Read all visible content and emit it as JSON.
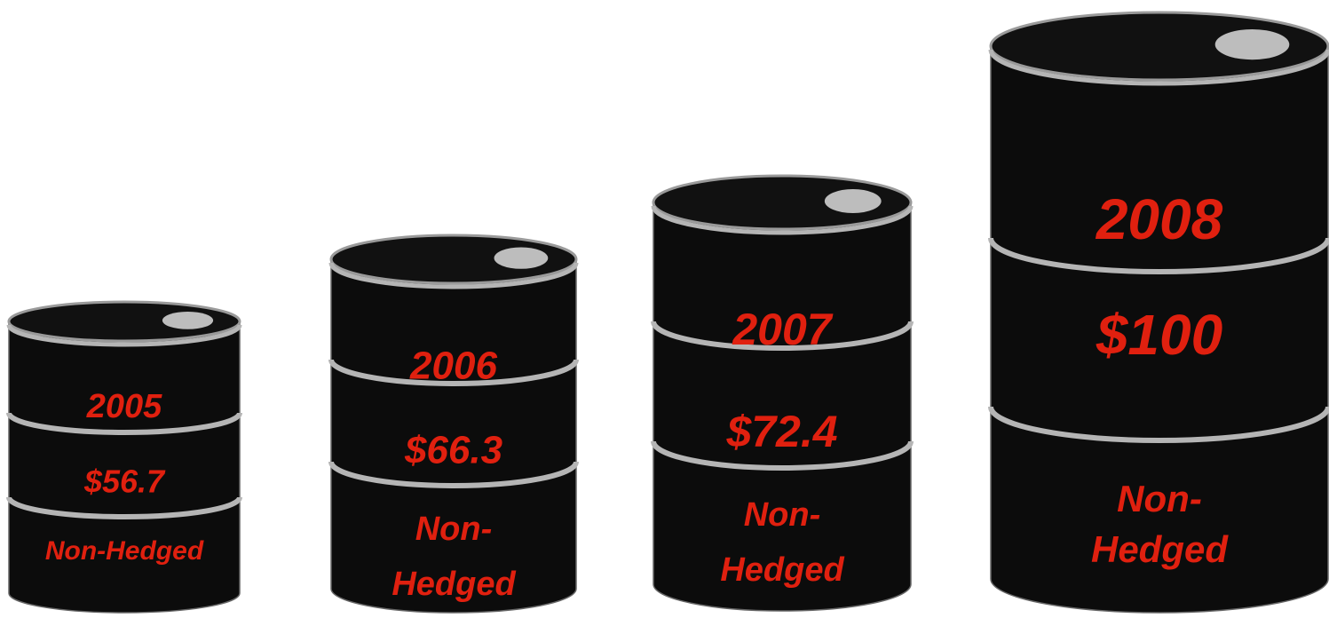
{
  "barrels": [
    {
      "year": "2005",
      "price": "$56.7",
      "label": [
        "Non-Hedged"
      ]
    },
    {
      "year": "2006",
      "price": "$66.3",
      "label": [
        "Non-",
        "Hedged"
      ]
    },
    {
      "year": "2007",
      "price": "$72.4",
      "label": [
        "Non-",
        "Hedged"
      ]
    },
    {
      "year": "2008",
      "price": "$100",
      "label": [
        "Non-",
        "Hedged"
      ]
    }
  ]
}
